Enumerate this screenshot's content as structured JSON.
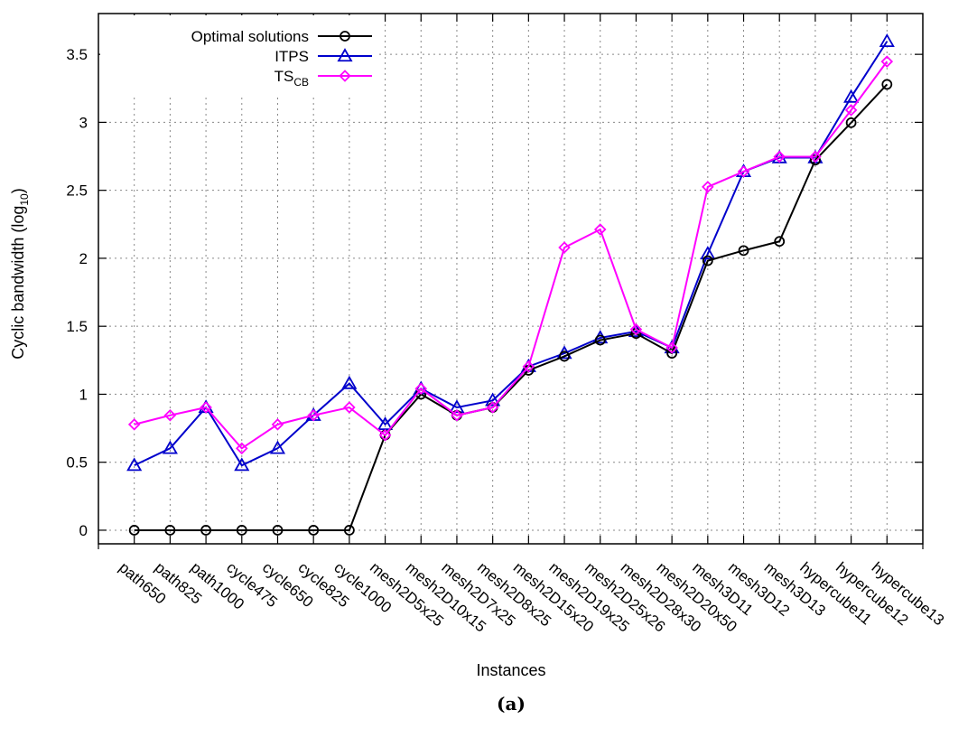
{
  "chart_data": {
    "type": "line",
    "caption": "(a)",
    "xlabel": "Instances",
    "ylabel": "Cyclic bandwidth (log",
    "ylabel_sub": "10",
    "ylabel_close": ")",
    "ylim": [
      -0.1,
      3.8
    ],
    "yticks": [
      0,
      0.5,
      1,
      1.5,
      2,
      2.5,
      3,
      3.5
    ],
    "ytick_labels": [
      "0",
      "0.5",
      "1",
      "1.5",
      "2",
      "2.5",
      "3",
      "3.5"
    ],
    "grid": true,
    "legend_position": "top-left",
    "categories": [
      "path650",
      "path825",
      "path1000",
      "cycle475",
      "cycle650",
      "cycle825",
      "cycle1000",
      "mesh2D5x25",
      "mesh2D10x15",
      "mesh2D7x25",
      "mesh2D8x25",
      "mesh2D15x20",
      "mesh2D19x25",
      "mesh2D25x26",
      "mesh2D28x30",
      "mesh2D20x50",
      "mesh3D11",
      "mesh3D12",
      "mesh3D13",
      "hypercube11",
      "hypercube12",
      "hypercube13"
    ],
    "series": [
      {
        "name": "Optimal solutions",
        "legend_label": "Optimal solutions",
        "legend_sub": "",
        "color": "#000000",
        "marker": "circle",
        "values": [
          0,
          0,
          0,
          0,
          0,
          0,
          0,
          0.7,
          1.0,
          0.845,
          0.903,
          1.176,
          1.279,
          1.398,
          1.447,
          1.301,
          1.982,
          2.057,
          2.124,
          2.722,
          2.997,
          3.279
        ]
      },
      {
        "name": "ITPS",
        "legend_label": "ITPS",
        "legend_sub": "",
        "color": "#0000cc",
        "marker": "triangle",
        "values": [
          0.477,
          0.602,
          0.903,
          0.477,
          0.602,
          0.845,
          1.079,
          0.778,
          1.041,
          0.903,
          0.954,
          1.204,
          1.301,
          1.415,
          1.462,
          1.342,
          2.033,
          2.638,
          2.74,
          2.74,
          3.185,
          3.595
        ]
      },
      {
        "name": "TS_CB",
        "legend_label": "TS",
        "legend_sub": "CB",
        "color": "#ff00ff",
        "marker": "diamond",
        "values": [
          0.778,
          0.845,
          0.903,
          0.602,
          0.778,
          0.845,
          0.903,
          0.699,
          1.041,
          0.845,
          0.903,
          1.204,
          2.079,
          2.212,
          1.477,
          1.342,
          2.525,
          2.638,
          2.747,
          2.747,
          3.09,
          3.447
        ]
      }
    ]
  }
}
